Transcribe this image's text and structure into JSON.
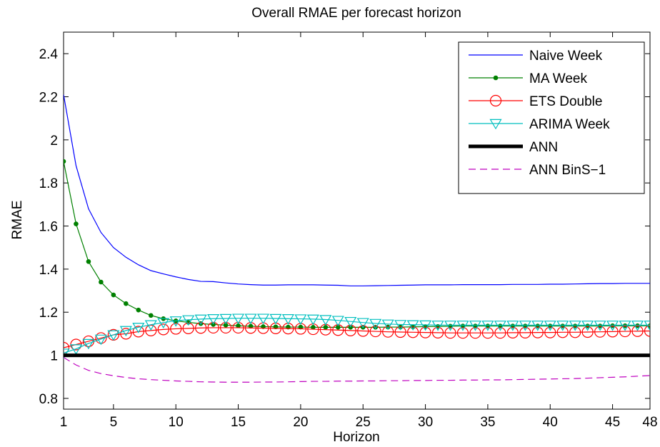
{
  "chart_data": {
    "type": "line",
    "title": "Overall RMAE per forecast horizon",
    "xlabel": "Horizon",
    "ylabel": "RMAE",
    "xlim": [
      1,
      48
    ],
    "ylim": [
      0.75,
      2.5
    ],
    "xticks": [
      1,
      5,
      10,
      15,
      20,
      25,
      30,
      35,
      40,
      45,
      48
    ],
    "yticks": [
      0.8,
      1,
      1.2,
      1.4,
      1.6,
      1.8,
      2,
      2.2,
      2.4
    ],
    "ytick_labels": [
      "0.8",
      "1",
      "1.2",
      "1.4",
      "1.6",
      "1.8",
      "2",
      "2.2",
      "2.4"
    ],
    "grid": false,
    "legend_position": "top-right",
    "series": [
      {
        "name": "Naive Week",
        "color": "#0000ff",
        "style": "solid",
        "marker": "none",
        "values": [
          2.21,
          1.88,
          1.68,
          1.57,
          1.5,
          1.455,
          1.42,
          1.393,
          1.378,
          1.364,
          1.352,
          1.343,
          1.342,
          1.336,
          1.331,
          1.328,
          1.326,
          1.326,
          1.327,
          1.327,
          1.327,
          1.326,
          1.325,
          1.322,
          1.322,
          1.323,
          1.324,
          1.325,
          1.326,
          1.327,
          1.327,
          1.327,
          1.328,
          1.328,
          1.328,
          1.328,
          1.329,
          1.329,
          1.329,
          1.33,
          1.33,
          1.331,
          1.332,
          1.333,
          1.333,
          1.334,
          1.334,
          1.334
        ]
      },
      {
        "name": "MA Week",
        "color": "#008000",
        "style": "solid",
        "marker": "dot",
        "values": [
          1.9,
          1.61,
          1.435,
          1.34,
          1.28,
          1.24,
          1.21,
          1.185,
          1.17,
          1.16,
          1.153,
          1.147,
          1.143,
          1.14,
          1.137,
          1.135,
          1.133,
          1.132,
          1.131,
          1.131,
          1.13,
          1.13,
          1.13,
          1.13,
          1.13,
          1.13,
          1.131,
          1.131,
          1.132,
          1.133,
          1.134,
          1.135,
          1.136,
          1.136,
          1.136,
          1.136,
          1.136,
          1.136,
          1.136,
          1.136,
          1.136,
          1.136,
          1.136,
          1.136,
          1.137,
          1.137,
          1.137,
          1.137
        ]
      },
      {
        "name": "ETS Double",
        "color": "#ff0000",
        "style": "solid",
        "marker": "circle",
        "values": [
          1.035,
          1.05,
          1.065,
          1.08,
          1.095,
          1.1,
          1.11,
          1.115,
          1.12,
          1.123,
          1.125,
          1.127,
          1.128,
          1.128,
          1.128,
          1.127,
          1.126,
          1.125,
          1.124,
          1.123,
          1.121,
          1.119,
          1.117,
          1.115,
          1.113,
          1.111,
          1.109,
          1.108,
          1.107,
          1.106,
          1.105,
          1.104,
          1.104,
          1.104,
          1.104,
          1.104,
          1.105,
          1.105,
          1.106,
          1.106,
          1.107,
          1.107,
          1.108,
          1.109,
          1.11,
          1.111,
          1.112,
          1.113
        ]
      },
      {
        "name": "ARIMA Week",
        "color": "#00bfbf",
        "style": "solid",
        "marker": "triangle-down",
        "values": [
          1.01,
          1.03,
          1.055,
          1.075,
          1.095,
          1.115,
          1.13,
          1.142,
          1.152,
          1.16,
          1.165,
          1.168,
          1.17,
          1.171,
          1.172,
          1.172,
          1.172,
          1.171,
          1.17,
          1.169,
          1.168,
          1.166,
          1.162,
          1.157,
          1.152,
          1.148,
          1.145,
          1.143,
          1.142,
          1.141,
          1.14,
          1.14,
          1.14,
          1.14,
          1.14,
          1.14,
          1.14,
          1.14,
          1.14,
          1.14,
          1.14,
          1.14,
          1.14,
          1.14,
          1.14,
          1.14,
          1.14,
          1.14
        ]
      },
      {
        "name": "ANN",
        "color": "#000000",
        "style": "solid-thick",
        "marker": "none",
        "values": [
          1,
          1,
          1,
          1,
          1,
          1,
          1,
          1,
          1,
          1,
          1,
          1,
          1,
          1,
          1,
          1,
          1,
          1,
          1,
          1,
          1,
          1,
          1,
          1,
          1,
          1,
          1,
          1,
          1,
          1,
          1,
          1,
          1,
          1,
          1,
          1,
          1,
          1,
          1,
          1,
          1,
          1,
          1,
          1,
          1,
          1,
          1,
          1
        ]
      },
      {
        "name": "ANN BinS−1",
        "color": "#bf00bf",
        "style": "dashed",
        "marker": "none",
        "values": [
          0.99,
          0.955,
          0.93,
          0.915,
          0.905,
          0.897,
          0.891,
          0.887,
          0.884,
          0.881,
          0.879,
          0.877,
          0.876,
          0.875,
          0.875,
          0.875,
          0.876,
          0.876,
          0.877,
          0.878,
          0.879,
          0.879,
          0.88,
          0.88,
          0.881,
          0.881,
          0.882,
          0.882,
          0.883,
          0.883,
          0.884,
          0.884,
          0.885,
          0.885,
          0.886,
          0.886,
          0.887,
          0.888,
          0.889,
          0.89,
          0.891,
          0.892,
          0.894,
          0.896,
          0.898,
          0.9,
          0.903,
          0.906
        ]
      }
    ]
  }
}
